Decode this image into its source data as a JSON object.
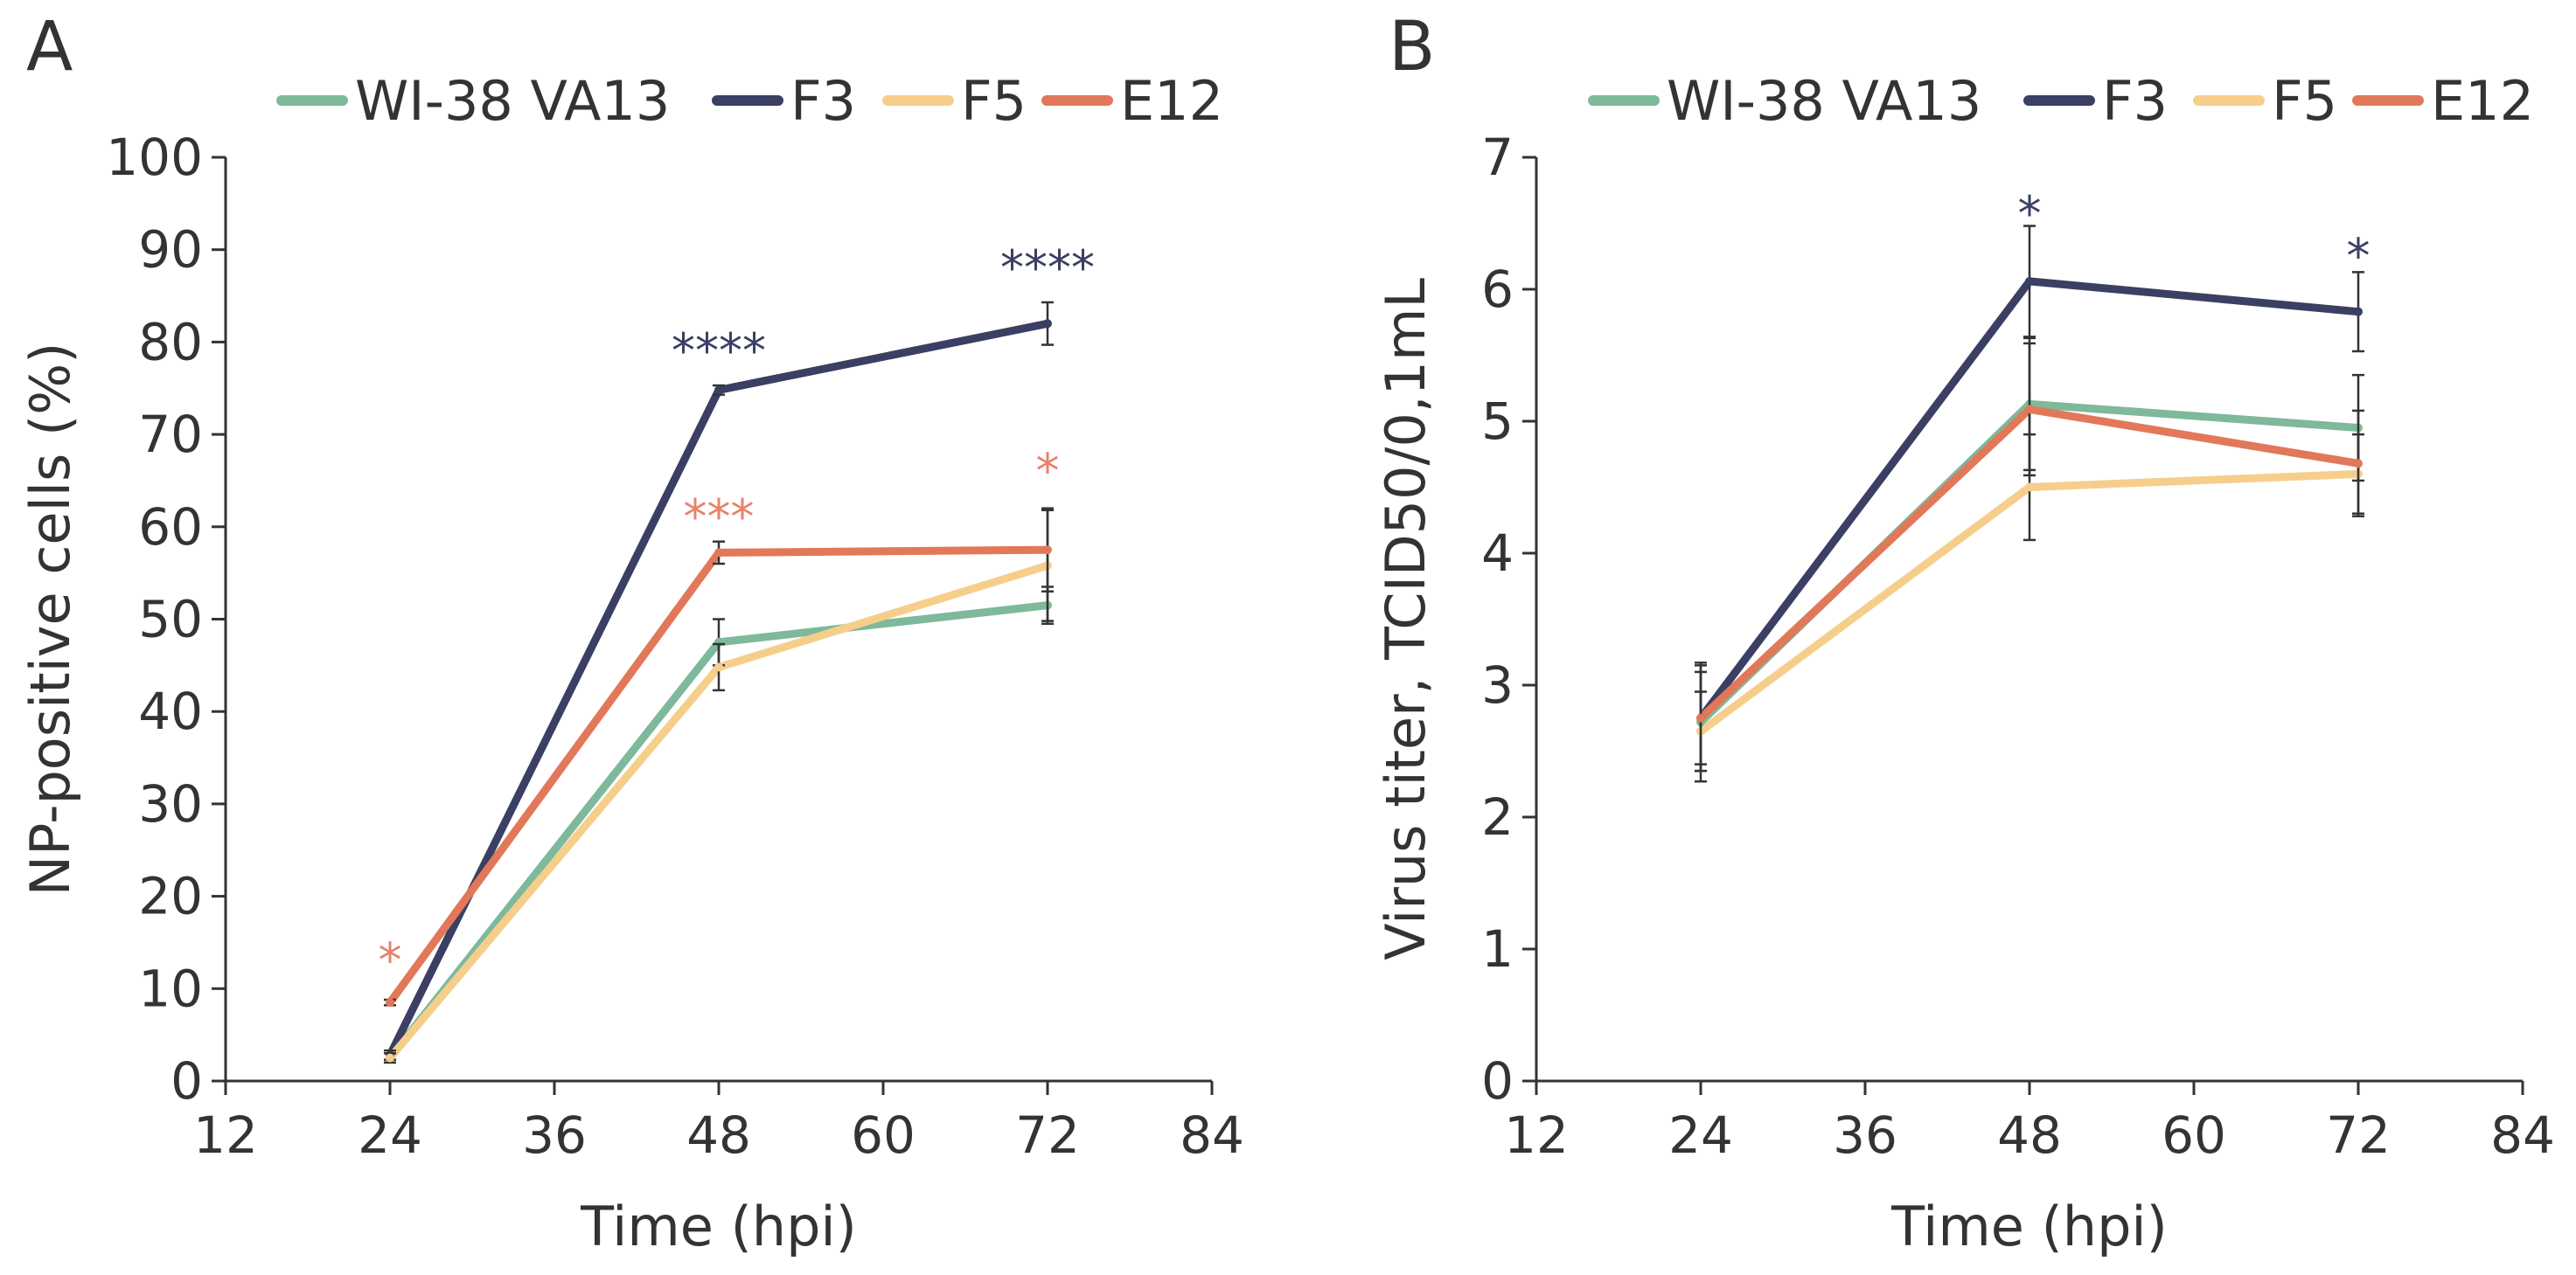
{
  "chart_data": [
    {
      "type": "line",
      "panel_label": "A",
      "title": "",
      "xlabel": "Time (hpi)",
      "ylabel": "NP-positive cells (%)",
      "xlim": [
        12,
        84
      ],
      "ylim": [
        0,
        100
      ],
      "xticks": [
        12,
        24,
        36,
        48,
        60,
        72,
        84
      ],
      "yticks": [
        0,
        10,
        20,
        30,
        40,
        50,
        60,
        70,
        80,
        90,
        100
      ],
      "grid": false,
      "legend_position": "top",
      "series": [
        {
          "name": "WI-38 VA13",
          "color": "#7db99a",
          "x": [
            24,
            48,
            72
          ],
          "y": [
            2.5,
            47.5,
            51.5
          ],
          "err": [
            0.5,
            2.5,
            2
          ]
        },
        {
          "name": "F3",
          "color": "#3a3f63",
          "x": [
            24,
            48,
            72
          ],
          "y": [
            2.8,
            74.8,
            82
          ],
          "err": [
            0.5,
            0.5,
            2.3
          ]
        },
        {
          "name": "F5",
          "color": "#f6ce8b",
          "x": [
            24,
            48,
            72
          ],
          "y": [
            2.5,
            44.8,
            55.8
          ],
          "err": [
            0.5,
            2.5,
            6
          ]
        },
        {
          "name": "E12",
          "color": "#e2785a",
          "x": [
            24,
            48,
            72
          ],
          "y": [
            8.5,
            57.2,
            57.5
          ],
          "err": [
            0.3,
            1.2,
            4.5
          ]
        }
      ],
      "annotations": [
        {
          "text": "*",
          "x": 24,
          "y": 13,
          "color": "#e8826b"
        },
        {
          "text": "****",
          "x": 48,
          "y": 79,
          "color": "#3a3f63"
        },
        {
          "text": "***",
          "x": 48,
          "y": 61,
          "color": "#e8826b"
        },
        {
          "text": "****",
          "x": 72,
          "y": 88,
          "color": "#3a3f63"
        },
        {
          "text": "*",
          "x": 72,
          "y": 66,
          "color": "#e8826b"
        }
      ]
    },
    {
      "type": "line",
      "panel_label": "B",
      "title": "",
      "xlabel": "Time (hpi)",
      "ylabel": "Virus titer, TCID50/0,1mL",
      "xlim": [
        12,
        84
      ],
      "ylim": [
        0,
        7
      ],
      "xticks": [
        12,
        24,
        36,
        48,
        60,
        72,
        84
      ],
      "yticks": [
        0,
        1,
        2,
        3,
        4,
        5,
        6,
        7
      ],
      "grid": false,
      "legend_position": "top",
      "series": [
        {
          "name": "WI-38 VA13",
          "color": "#7db99a",
          "x": [
            24,
            48,
            72
          ],
          "y": [
            2.72,
            5.13,
            4.95
          ],
          "err": [
            0.45,
            0.5,
            0.4
          ]
        },
        {
          "name": "F3",
          "color": "#3a3f63",
          "x": [
            24,
            48,
            72
          ],
          "y": [
            2.75,
            6.06,
            5.83
          ],
          "err": [
            0.4,
            0.42,
            0.3
          ]
        },
        {
          "name": "F5",
          "color": "#f6ce8b",
          "x": [
            24,
            48,
            72
          ],
          "y": [
            2.65,
            4.5,
            4.6
          ],
          "err": [
            0.3,
            0.4,
            0.3
          ]
        },
        {
          "name": "E12",
          "color": "#e2785a",
          "x": [
            24,
            48,
            72
          ],
          "y": [
            2.75,
            5.09,
            4.68
          ],
          "err": [
            0.35,
            0.5,
            0.4
          ]
        }
      ],
      "annotations": [
        {
          "text": "*",
          "x": 48,
          "y": 6.57,
          "color": "#3a3f63"
        },
        {
          "text": "*",
          "x": 72,
          "y": 6.25,
          "color": "#3a3f63"
        }
      ]
    }
  ]
}
